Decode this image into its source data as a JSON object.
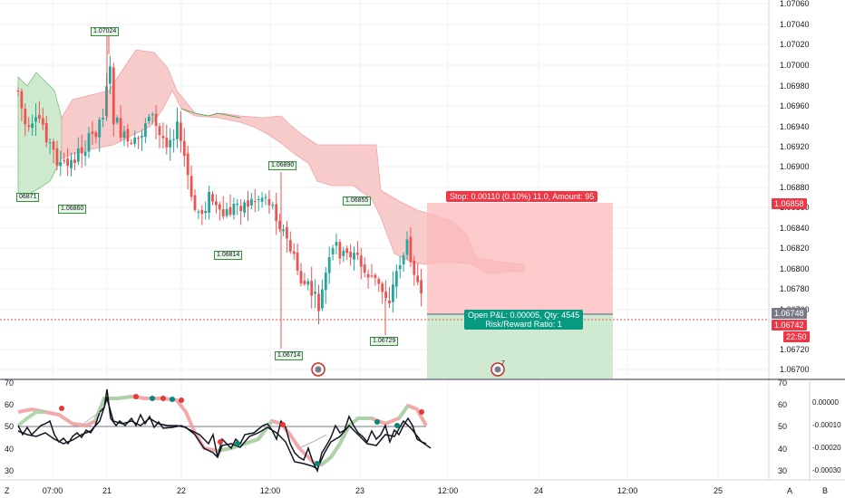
{
  "price_axis": {
    "ticks": [
      "1.07060",
      "1.07040",
      "1.07020",
      "1.07000",
      "1.06980",
      "1.06960",
      "1.06940",
      "1.06920",
      "1.06900",
      "1.06880",
      "1.06860",
      "1.06840",
      "1.06820",
      "1.06800",
      "1.06780",
      "1.06760",
      "1.06720",
      "1.06700"
    ],
    "stop_price": "1.06858",
    "entry_price": "1.06748",
    "current_price": "1.06742",
    "countdown": "22:50"
  },
  "osc_axis": {
    "left_ticks": [
      "70",
      "60",
      "50",
      "40",
      "30"
    ],
    "right_ticks": [
      "70",
      "60",
      "50",
      "40",
      "30"
    ],
    "far_right_ticks": [
      "0.00000",
      "-0.00010",
      "-0.00020",
      "-0.00030"
    ]
  },
  "time_axis": {
    "labels": [
      "07:00",
      "21",
      "22",
      "12:00",
      "23",
      "12:00",
      "24",
      "12:00",
      "25"
    ],
    "left_corner": "Z",
    "right_a": "A",
    "right_b": "B"
  },
  "annotations": {
    "high_1": "1.07024",
    "low_1": "1.06860",
    "left_partial": "06871",
    "high_2": "1.06890",
    "low_2": "1.06814",
    "high_3": "1.06855",
    "low_3": "1.06714",
    "low_4": "1.06729"
  },
  "position": {
    "stop_label": "Stop: 0.00110 (0.10%) 11.0, Amount: 95",
    "pnl_line1": "Open P&L: 0.00005, Qty: 4545",
    "pnl_line2": "Risk/Reward Ratio: 1"
  },
  "event_badge": "7",
  "colors": {
    "up": "#26a69a",
    "down": "#ef5350",
    "cloud_red": "#f8c6c6",
    "cloud_green": "#c9e8c9",
    "stop_zone": "#fcb9b9",
    "target_zone": "#c8e6c9",
    "stop_tag": "#f23645",
    "pnl_tag": "#089981"
  }
}
